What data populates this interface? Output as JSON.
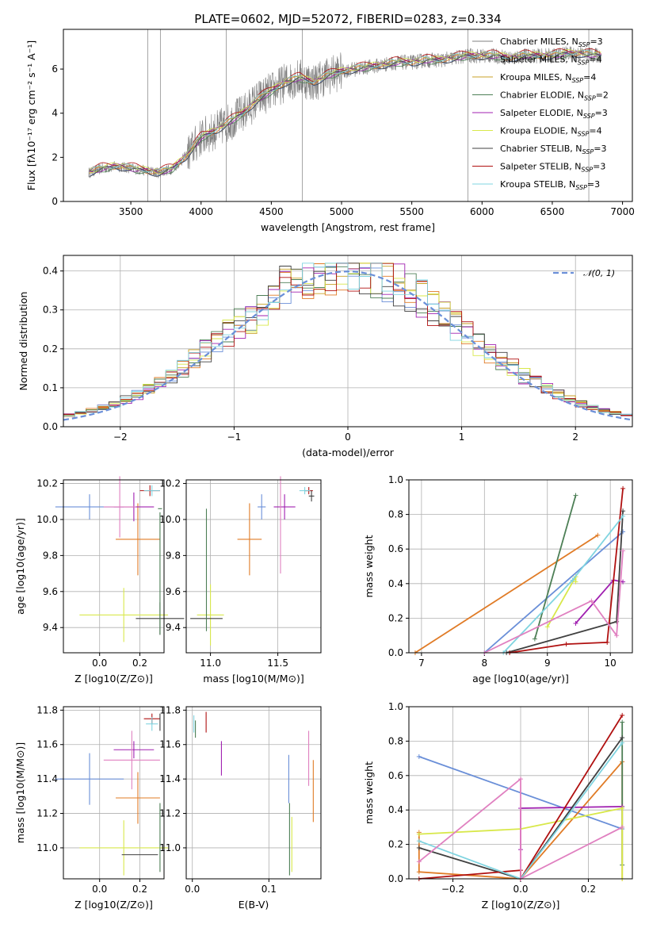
{
  "figure_title": "PLATE=0602, MJD=52072, FIBERID=0283, z=0.334",
  "colors": {
    "chabrier_miles": "#6a8fd8",
    "salpeter_miles": "#e07b26",
    "kroupa_miles": "#c9a227",
    "chabrier_elodie": "#4d7f56",
    "salpeter_elodie": "#a020b0",
    "kroupa_elodie": "#d8e84a",
    "chabrier_stelib": "#404040",
    "salpeter_stelib": "#b01010",
    "kroupa_stelib": "#80d4e0",
    "pink": "#e080c0",
    "data": "#808080",
    "gaussian": "#6a8fd8"
  },
  "legend": [
    {
      "label": "Chabrier MILES, N",
      "sub": "SSP",
      "eq": "=3",
      "color": "#808080"
    },
    {
      "label": "Salpeter MILES, N",
      "sub": "SSP",
      "eq": "=4",
      "color": "#808080"
    },
    {
      "label": "Kroupa MILES, N",
      "sub": "SSP",
      "eq": "=4",
      "color": "#c9a227"
    },
    {
      "label": "Chabrier ELODIE, N",
      "sub": "SSP",
      "eq": "=2",
      "color": "#4d7f56"
    },
    {
      "label": "Salpeter ELODIE, N",
      "sub": "SSP",
      "eq": "=3",
      "color": "#a020b0"
    },
    {
      "label": "Kroupa ELODIE, N",
      "sub": "SSP",
      "eq": "=4",
      "color": "#d8e84a"
    },
    {
      "label": "Chabrier STELIB, N",
      "sub": "SSP",
      "eq": "=3",
      "color": "#404040"
    },
    {
      "label": "Salpeter STELIB, N",
      "sub": "SSP",
      "eq": "=3",
      "color": "#b01010"
    },
    {
      "label": "Kroupa STELIB, N",
      "sub": "SSP",
      "eq": "=3",
      "color": "#80d4e0"
    }
  ],
  "chart_data": [
    {
      "type": "line",
      "xlabel": "wavelength [Angstrom, rest frame]",
      "ylabel": "Flux [fλ10⁻¹⁷ erg cm⁻² s⁻¹ A⁻¹]",
      "xlim": [
        3020,
        7070
      ],
      "ylim": [
        0,
        7.8
      ],
      "xticks": [
        3500,
        4000,
        4500,
        5000,
        5500,
        6000,
        6500,
        7000
      ],
      "yticks": [
        0,
        2,
        4,
        6
      ],
      "spectrum_x": [
        3200,
        3300,
        3400,
        3500,
        3600,
        3700,
        3800,
        3900,
        4000,
        4100,
        4200,
        4300,
        4400,
        4500,
        4600,
        4700,
        4800,
        4900,
        5000,
        5100,
        5200,
        5300,
        5400,
        5500,
        5600,
        5700,
        5800,
        5900,
        6000,
        6100,
        6200,
        6300,
        6400,
        6500,
        6600,
        6700,
        6850
      ],
      "spectrum_y": [
        1.3,
        1.5,
        1.6,
        1.5,
        1.4,
        1.3,
        1.5,
        2.1,
        2.9,
        3.2,
        3.6,
        4.0,
        4.6,
        5.0,
        5.4,
        5.6,
        5.4,
        5.7,
        5.9,
        6.0,
        6.1,
        6.2,
        6.3,
        6.3,
        6.4,
        6.4,
        6.5,
        6.6,
        6.6,
        6.6,
        6.5,
        6.6,
        6.6,
        6.6,
        6.7,
        6.7,
        6.6
      ]
    },
    {
      "type": "bar",
      "xlabel": "(data-model)/error",
      "ylabel": "Normed distribution",
      "xlim": [
        -2.5,
        2.5
      ],
      "ylim": [
        0,
        0.44
      ],
      "xticks": [
        -2,
        -1,
        0,
        1,
        2
      ],
      "yticks": [
        0.0,
        0.1,
        0.2,
        0.3,
        0.4
      ],
      "gaussian_label": "𝒩(0, 1)"
    },
    {
      "type": "scatter",
      "xlabel": "Z [log10(Z/Z⊙)]",
      "ylabel": "age [log10(age/yr)]",
      "xlim": [
        -0.18,
        0.32
      ],
      "ylim": [
        9.26,
        10.22
      ],
      "xticks": [
        0.0,
        0.2
      ],
      "yticks": [
        9.4,
        9.6,
        9.8,
        10.0,
        10.2
      ]
    },
    {
      "type": "scatter",
      "xlabel": "mass [log10(M/M⊙)]",
      "ylabel": "",
      "xlim": [
        10.82,
        11.82
      ],
      "ylim": [
        9.26,
        10.22
      ],
      "xticks": [
        11.0,
        11.5
      ],
      "yticks": [
        9.4,
        9.6,
        9.8,
        10.0,
        10.2
      ]
    },
    {
      "type": "line",
      "xlabel": "age [log10(age/yr)]",
      "ylabel": "mass weight",
      "xlim": [
        6.8,
        10.35
      ],
      "ylim": [
        0,
        1.0
      ],
      "xticks": [
        7,
        8,
        9,
        10
      ],
      "yticks": [
        0.0,
        0.2,
        0.4,
        0.6,
        0.8,
        1.0
      ],
      "series": [
        {
          "color": "#6a8fd8",
          "x": [
            8.0,
            10.2
          ],
          "y": [
            0.0,
            0.7
          ]
        },
        {
          "color": "#e07b26",
          "x": [
            6.9,
            9.8
          ],
          "y": [
            0.0,
            0.68
          ]
        },
        {
          "color": "#4d7f56",
          "x": [
            8.8,
            9.45
          ],
          "y": [
            0.08,
            0.91
          ]
        },
        {
          "color": "#a020b0",
          "x": [
            9.45,
            10.05,
            10.2
          ],
          "y": [
            0.17,
            0.42,
            0.41
          ]
        },
        {
          "color": "#d8e84a",
          "x": [
            9.0,
            9.45,
            9.45
          ],
          "y": [
            0.15,
            0.44,
            0.41
          ]
        },
        {
          "color": "#404040",
          "x": [
            8.35,
            10.1,
            10.2
          ],
          "y": [
            0.0,
            0.18,
            0.82
          ]
        },
        {
          "color": "#b01010",
          "x": [
            8.4,
            9.3,
            9.95,
            10.2
          ],
          "y": [
            0.0,
            0.05,
            0.06,
            0.95
          ]
        },
        {
          "color": "#80d4e0",
          "x": [
            8.3,
            9.4,
            10.2
          ],
          "y": [
            0.0,
            0.42,
            0.79
          ]
        },
        {
          "color": "#e080c0",
          "x": [
            8.0,
            9.7,
            10.1,
            10.2
          ],
          "y": [
            0.0,
            0.3,
            0.1,
            0.59
          ]
        }
      ]
    },
    {
      "type": "scatter",
      "xlabel": "Z [log10(Z/Z⊙)]",
      "ylabel": "mass [log10(M/M⊙)]",
      "xlim": [
        -0.18,
        0.32
      ],
      "ylim": [
        10.82,
        11.82
      ],
      "xticks": [
        0.0,
        0.2
      ],
      "yticks": [
        11.0,
        11.2,
        11.4,
        11.6,
        11.8
      ]
    },
    {
      "type": "scatter",
      "xlabel": "E(B-V)",
      "ylabel": "",
      "xlim": [
        -0.008,
        0.168
      ],
      "ylim": [
        10.82,
        11.82
      ],
      "xticks": [
        0.0,
        0.1
      ],
      "yticks": [
        11.0,
        11.2,
        11.4,
        11.6,
        11.8
      ]
    },
    {
      "type": "line",
      "xlabel": "Z [log10(Z/Z⊙)]",
      "ylabel": "mass weight",
      "xlim": [
        -0.33,
        0.33
      ],
      "ylim": [
        0,
        1.0
      ],
      "xticks": [
        -0.2,
        0.0,
        0.2
      ],
      "yticks": [
        0.0,
        0.2,
        0.4,
        0.6,
        0.8,
        1.0
      ],
      "series": [
        {
          "color": "#6a8fd8",
          "x": [
            -0.3,
            0.3
          ],
          "y": [
            0.71,
            0.29
          ]
        },
        {
          "color": "#e07b26",
          "x": [
            -0.3,
            -0.3,
            0.0,
            0.3,
            0.3
          ],
          "y": [
            0.27,
            0.04,
            0.0,
            0.68,
            0.0
          ]
        },
        {
          "color": "#4d7f56",
          "x": [
            0.3,
            0.3
          ],
          "y": [
            0.08,
            0.91
          ]
        },
        {
          "color": "#a020b0",
          "x": [
            0.0,
            0.0,
            0.3
          ],
          "y": [
            0.17,
            0.41,
            0.42
          ]
        },
        {
          "color": "#d8e84a",
          "x": [
            -0.3,
            0.0,
            0.3,
            0.3
          ],
          "y": [
            0.26,
            0.29,
            0.41,
            0.0
          ]
        },
        {
          "color": "#404040",
          "x": [
            -0.3,
            0.0,
            0.3
          ],
          "y": [
            0.18,
            0.0,
            0.82
          ]
        },
        {
          "color": "#b01010",
          "x": [
            -0.3,
            0.0,
            0.0,
            0.3
          ],
          "y": [
            0.0,
            0.05,
            0.0,
            0.95
          ]
        },
        {
          "color": "#80d4e0",
          "x": [
            -0.3,
            0.0,
            0.3
          ],
          "y": [
            0.22,
            0.0,
            0.79
          ]
        },
        {
          "color": "#e080c0",
          "x": [
            -0.3,
            0.0,
            0.0,
            0.3
          ],
          "y": [
            0.1,
            0.58,
            0.0,
            0.3
          ]
        }
      ]
    }
  ],
  "errorbars_Zage": [
    {
      "color": "#6a8fd8",
      "x": -0.05,
      "xerr": 0.17,
      "y": 10.07,
      "yerr": 0.07
    },
    {
      "color": "#e07b26",
      "x": 0.19,
      "xerr": 0.11,
      "y": 9.89,
      "yerr": 0.2
    },
    {
      "color": "#4d7f56",
      "x": 0.3,
      "xerr": 0.01,
      "y": 10.06,
      "yerr": 0.0
    },
    {
      "color": "#a020b0",
      "x": 0.17,
      "xerr": 0.1,
      "y": 10.07,
      "yerr": 0.08
    },
    {
      "color": "#d8e84a",
      "x": 0.12,
      "xerr": 0.22,
      "y": 9.47,
      "yerr": 0.15
    },
    {
      "color": "#404040",
      "x": 0.3,
      "xerr": 0.12,
      "y": 9.45,
      "yerr": 0.09
    },
    {
      "color": "#b01010",
      "x": 0.25,
      "xerr": 0.05,
      "y": 10.16,
      "yerr": 0.03
    },
    {
      "color": "#80d4e0",
      "x": 0.26,
      "xerr": 0.04,
      "y": 10.16,
      "yerr": 0.03
    },
    {
      "color": "#e080c0",
      "x": 0.1,
      "xerr": 0.08,
      "y": 10.07,
      "yerr": 0.17
    },
    {
      "color": "#4d7f56",
      "x": 0.3,
      "xerr": 0.0,
      "y": 9.7,
      "yerr": 0.34
    }
  ],
  "errorbars_Mage": [
    {
      "color": "#6a8fd8",
      "x": 11.38,
      "xerr": 0.03,
      "y": 10.07,
      "yerr": 0.07
    },
    {
      "color": "#e07b26",
      "x": 11.29,
      "xerr": 0.09,
      "y": 9.89,
      "yerr": 0.2
    },
    {
      "color": "#a020b0",
      "x": 11.55,
      "xerr": 0.08,
      "y": 10.07,
      "yerr": 0.07
    },
    {
      "color": "#d8e84a",
      "x": 11.0,
      "xerr": 0.1,
      "y": 9.47,
      "yerr": 0.17
    },
    {
      "color": "#404040",
      "x": 10.97,
      "xerr": 0.12,
      "y": 9.45,
      "yerr": 0.0
    },
    {
      "color": "#4d7f56",
      "x": 10.97,
      "xerr": 0.0,
      "y": 9.72,
      "yerr": 0.34
    },
    {
      "color": "#b01010",
      "x": 11.73,
      "xerr": 0.03,
      "y": 10.16,
      "yerr": 0.02
    },
    {
      "color": "#404040",
      "x": 11.75,
      "xerr": 0.02,
      "y": 10.13,
      "yerr": 0.03
    },
    {
      "color": "#e080c0",
      "x": 11.52,
      "xerr": 0.0,
      "y": 9.97,
      "yerr": 0.27
    },
    {
      "color": "#80d4e0",
      "x": 11.7,
      "xerr": 0.04,
      "y": 10.16,
      "yerr": 0.02
    }
  ],
  "errorbars_ZM": [
    {
      "color": "#6a8fd8",
      "x": -0.05,
      "xerr": 0.17,
      "y": 11.4,
      "yerr": 0.15
    },
    {
      "color": "#e07b26",
      "x": 0.19,
      "xerr": 0.11,
      "y": 11.29,
      "yerr": 0.15
    },
    {
      "color": "#a020b0",
      "x": 0.17,
      "xerr": 0.1,
      "y": 11.57,
      "yerr": 0.05
    },
    {
      "color": "#e080c0",
      "x": 0.16,
      "xerr": 0.14,
      "y": 11.51,
      "yerr": 0.17
    },
    {
      "color": "#d8e84a",
      "x": 0.12,
      "xerr": 0.22,
      "y": 11.0,
      "yerr": 0.16
    },
    {
      "color": "#404040",
      "x": 0.2,
      "xerr": 0.09,
      "y": 10.96,
      "yerr": 0.0
    },
    {
      "color": "#4d7f56",
      "x": 0.3,
      "xerr": 0.0,
      "y": 11.06,
      "yerr": 0.2
    },
    {
      "color": "#b01010",
      "x": 0.26,
      "xerr": 0.04,
      "y": 11.75,
      "yerr": 0.03
    },
    {
      "color": "#80d4e0",
      "x": 0.26,
      "xerr": 0.03,
      "y": 11.72,
      "yerr": 0.04
    },
    {
      "color": "#404040",
      "x": 0.3,
      "xerr": 0.0,
      "y": 11.73,
      "yerr": 0.05
    }
  ],
  "errorbars_EM": [
    {
      "color": "#80d4e0",
      "x": 0.002,
      "xerr": 0.0,
      "y": 11.72,
      "yerr": 0.05
    },
    {
      "color": "#4d7f56",
      "x": 0.004,
      "xerr": 0.0,
      "y": 11.69,
      "yerr": 0.05
    },
    {
      "color": "#b01010",
      "x": 0.018,
      "xerr": 0.0,
      "y": 11.73,
      "yerr": 0.06
    },
    {
      "color": "#a020b0",
      "x": 0.038,
      "xerr": 0.0,
      "y": 11.52,
      "yerr": 0.1
    },
    {
      "color": "#6a8fd8",
      "x": 0.126,
      "xerr": 0.0,
      "y": 11.4,
      "yerr": 0.14
    },
    {
      "color": "#4d7f56",
      "x": 0.127,
      "xerr": 0.0,
      "y": 11.05,
      "yerr": 0.21
    },
    {
      "color": "#d8e84a",
      "x": 0.13,
      "xerr": 0.0,
      "y": 11.02,
      "yerr": 0.16
    },
    {
      "color": "#e080c0",
      "x": 0.152,
      "xerr": 0.0,
      "y": 11.52,
      "yerr": 0.16
    },
    {
      "color": "#e07b26",
      "x": 0.158,
      "xerr": 0.0,
      "y": 11.33,
      "yerr": 0.18
    }
  ]
}
